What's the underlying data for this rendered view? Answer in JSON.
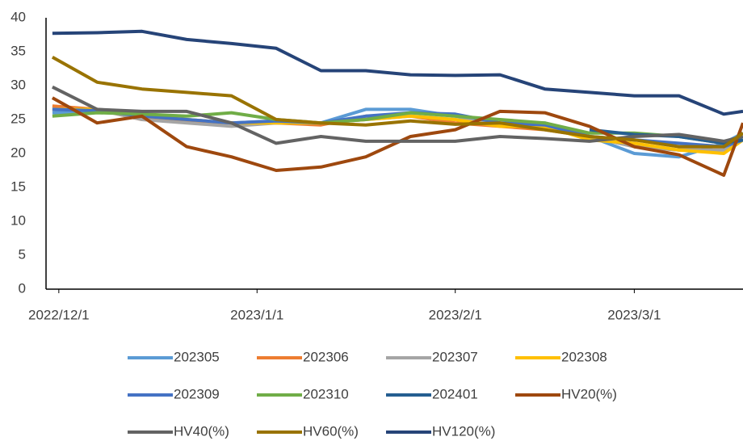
{
  "chart_data": {
    "type": "line",
    "x": [
      "2022/11/30",
      "2022/12/7",
      "2022/12/14",
      "2022/12/21",
      "2022/12/28",
      "2023/1/4",
      "2023/1/11",
      "2023/1/18",
      "2023/1/25",
      "2023/2/1",
      "2023/2/8",
      "2023/2/15",
      "2023/2/22",
      "2023/3/1",
      "2023/3/8",
      "2023/3/15",
      "2023/3/18"
    ],
    "xlim": [
      "2022/11/29",
      "2023/3/18"
    ],
    "xticks": [
      "2022/12/1",
      "2023/1/1",
      "2023/2/1",
      "2023/3/1"
    ],
    "ylim": [
      0,
      40
    ],
    "yticks": [
      0,
      5,
      10,
      15,
      20,
      25,
      30,
      35,
      40
    ],
    "grid": false,
    "legend": "bottom",
    "series": [
      {
        "name": "202305",
        "color": "#5b9bd5",
        "values": [
          26,
          26.2,
          25.5,
          25,
          24.5,
          24.8,
          24.5,
          26.5,
          26.5,
          25.5,
          24.5,
          24.5,
          22.5,
          20,
          19.5,
          21.5,
          23
        ]
      },
      {
        "name": "202306",
        "color": "#ed7d31",
        "values": [
          27,
          26.5,
          25,
          24.8,
          24.5,
          24.5,
          24.2,
          25.5,
          25.5,
          24.5,
          24,
          23.5,
          22.5,
          21,
          20.5,
          20.5,
          22
        ]
      },
      {
        "name": "202307",
        "color": "#a5a5a5",
        "values": [
          26.5,
          26.5,
          25,
          24.5,
          24,
          24.5,
          24.5,
          25,
          25.5,
          25,
          24.5,
          24,
          22.5,
          21,
          20.5,
          20.5,
          22
        ]
      },
      {
        "name": "202308",
        "color": "#ffc000",
        "values": [
          26.5,
          26.5,
          25.5,
          25,
          24.5,
          24.5,
          24.5,
          25,
          25.5,
          25,
          24,
          24,
          22,
          21.5,
          20.5,
          20,
          22
        ]
      },
      {
        "name": "202309",
        "color": "#4472c4",
        "values": [
          26.5,
          26.3,
          25.5,
          25,
          24.5,
          24.8,
          24.5,
          25.5,
          26,
          25.8,
          24.5,
          24.2,
          22.5,
          22,
          21.5,
          21,
          22
        ]
      },
      {
        "name": "202310",
        "color": "#70ad47",
        "values": [
          25.5,
          26,
          25.8,
          25.5,
          26,
          25,
          24.5,
          25,
          26,
          25.5,
          25,
          24.5,
          23,
          23,
          22.5,
          21.5,
          22
        ]
      },
      {
        "name": "202401",
        "color": "#255e91",
        "values": [
          null,
          null,
          null,
          null,
          null,
          null,
          null,
          null,
          null,
          null,
          null,
          null,
          23.5,
          22.8,
          22.5,
          21.5,
          22
        ]
      },
      {
        "name": "HV20(%)",
        "color": "#9e480e",
        "values": [
          28.2,
          24.5,
          25.5,
          21,
          19.5,
          17.5,
          18,
          19.5,
          22.5,
          23.5,
          26.2,
          26,
          24,
          21,
          19.8,
          16.8,
          24.5
        ]
      },
      {
        "name": "HV40(%)",
        "color": "#636363",
        "values": [
          29.8,
          26.5,
          26.2,
          26.2,
          24.5,
          21.5,
          22.5,
          21.8,
          21.8,
          21.8,
          22.5,
          22.2,
          21.8,
          22.5,
          22.8,
          21.8,
          22.5
        ]
      },
      {
        "name": "HV60(%)",
        "color": "#997300",
        "values": [
          34.2,
          30.5,
          29.5,
          29,
          28.5,
          25,
          24.5,
          24.2,
          24.8,
          24.3,
          24.5,
          23.5,
          22.5,
          22,
          21,
          21,
          23
        ]
      },
      {
        "name": "HV120(%)",
        "color": "#264478",
        "values": [
          37.7,
          37.8,
          38,
          36.8,
          36.2,
          35.5,
          32.2,
          32.2,
          31.6,
          31.5,
          31.6,
          29.5,
          29,
          28.5,
          28.5,
          25.8,
          26.2
        ]
      }
    ]
  }
}
